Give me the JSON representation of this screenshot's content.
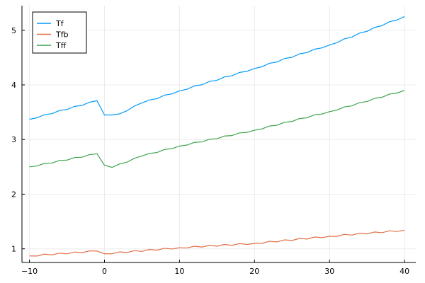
{
  "chart_data": {
    "type": "line",
    "title": "",
    "xlabel": "",
    "ylabel": "",
    "xlim": [
      -11,
      41.5
    ],
    "ylim": [
      0.75,
      5.45
    ],
    "grid": true,
    "legend_position": "top-left",
    "x_ticks": [
      -10,
      0,
      10,
      20,
      30,
      40
    ],
    "x_tick_labels": [
      "−10",
      "0",
      "10",
      "20",
      "30",
      "40"
    ],
    "y_ticks": [
      1,
      2,
      3,
      4,
      5
    ],
    "y_tick_labels": [
      "1",
      "2",
      "3",
      "4",
      "5"
    ],
    "series": [
      {
        "name": "Tf",
        "color": "#009af9",
        "points": [
          [
            -10,
            3.37
          ],
          [
            -1,
            3.71
          ],
          [
            0,
            3.45
          ],
          [
            2,
            3.47
          ],
          [
            5,
            3.67
          ],
          [
            10,
            3.89
          ],
          [
            20,
            4.3
          ],
          [
            30,
            4.73
          ],
          [
            40,
            5.25
          ]
        ]
      },
      {
        "name": "Tfb",
        "color": "#e26f46",
        "points": [
          [
            -10,
            0.87
          ],
          [
            -1,
            0.96
          ],
          [
            0,
            0.91
          ],
          [
            10,
            1.02
          ],
          [
            20,
            1.1
          ],
          [
            30,
            1.23
          ],
          [
            40,
            1.34
          ]
        ]
      },
      {
        "name": "Tff",
        "color": "#3da44d",
        "points": [
          [
            -10,
            2.5
          ],
          [
            -1,
            2.74
          ],
          [
            0,
            2.53
          ],
          [
            1,
            2.49
          ],
          [
            5,
            2.7
          ],
          [
            10,
            2.88
          ],
          [
            20,
            3.17
          ],
          [
            30,
            3.51
          ],
          [
            40,
            3.9
          ]
        ]
      }
    ]
  }
}
